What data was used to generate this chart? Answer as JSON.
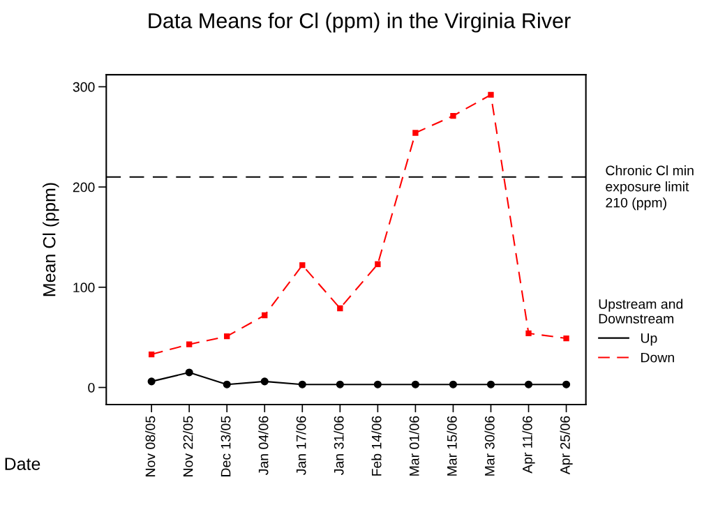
{
  "chart_data": {
    "type": "line",
    "title": "Data Means for Cl (ppm) in the Virginia River",
    "xlabel": "Date",
    "ylabel": "Mean Cl (ppm)",
    "legend_title": "Upstream and\nDownstream",
    "categories": [
      "Nov 08/05",
      "Nov 22/05",
      "Dec 13/05",
      "Jan 04/06",
      "Jan 17/06",
      "Jan 31/06",
      "Feb 14/06",
      "Mar 01/06",
      "Mar 15/06",
      "Mar 30/06",
      "Apr 11/06",
      "Apr 25/06"
    ],
    "series": [
      {
        "name": "Up",
        "color": "#000000",
        "marker": "circle",
        "line_style": "solid",
        "values": [
          6,
          15,
          3,
          6,
          3,
          3,
          3,
          3,
          3,
          3,
          3,
          3
        ]
      },
      {
        "name": "Down",
        "color": "#ff0000",
        "marker": "square",
        "line_style": "dashed",
        "values": [
          33,
          43,
          51,
          72,
          122,
          79,
          123,
          254,
          271,
          292,
          54,
          49
        ]
      }
    ],
    "ylim": [
      -17,
      312
    ],
    "yticks": [
      0,
      100,
      200,
      300
    ],
    "grid": false,
    "legend": "right",
    "ref_lines": [
      {
        "axis": "y",
        "value": 210,
        "label": "Chronic Cl min\nexposure limit\n210 (ppm)",
        "color": "#000000",
        "line_style": "dashed"
      }
    ]
  }
}
